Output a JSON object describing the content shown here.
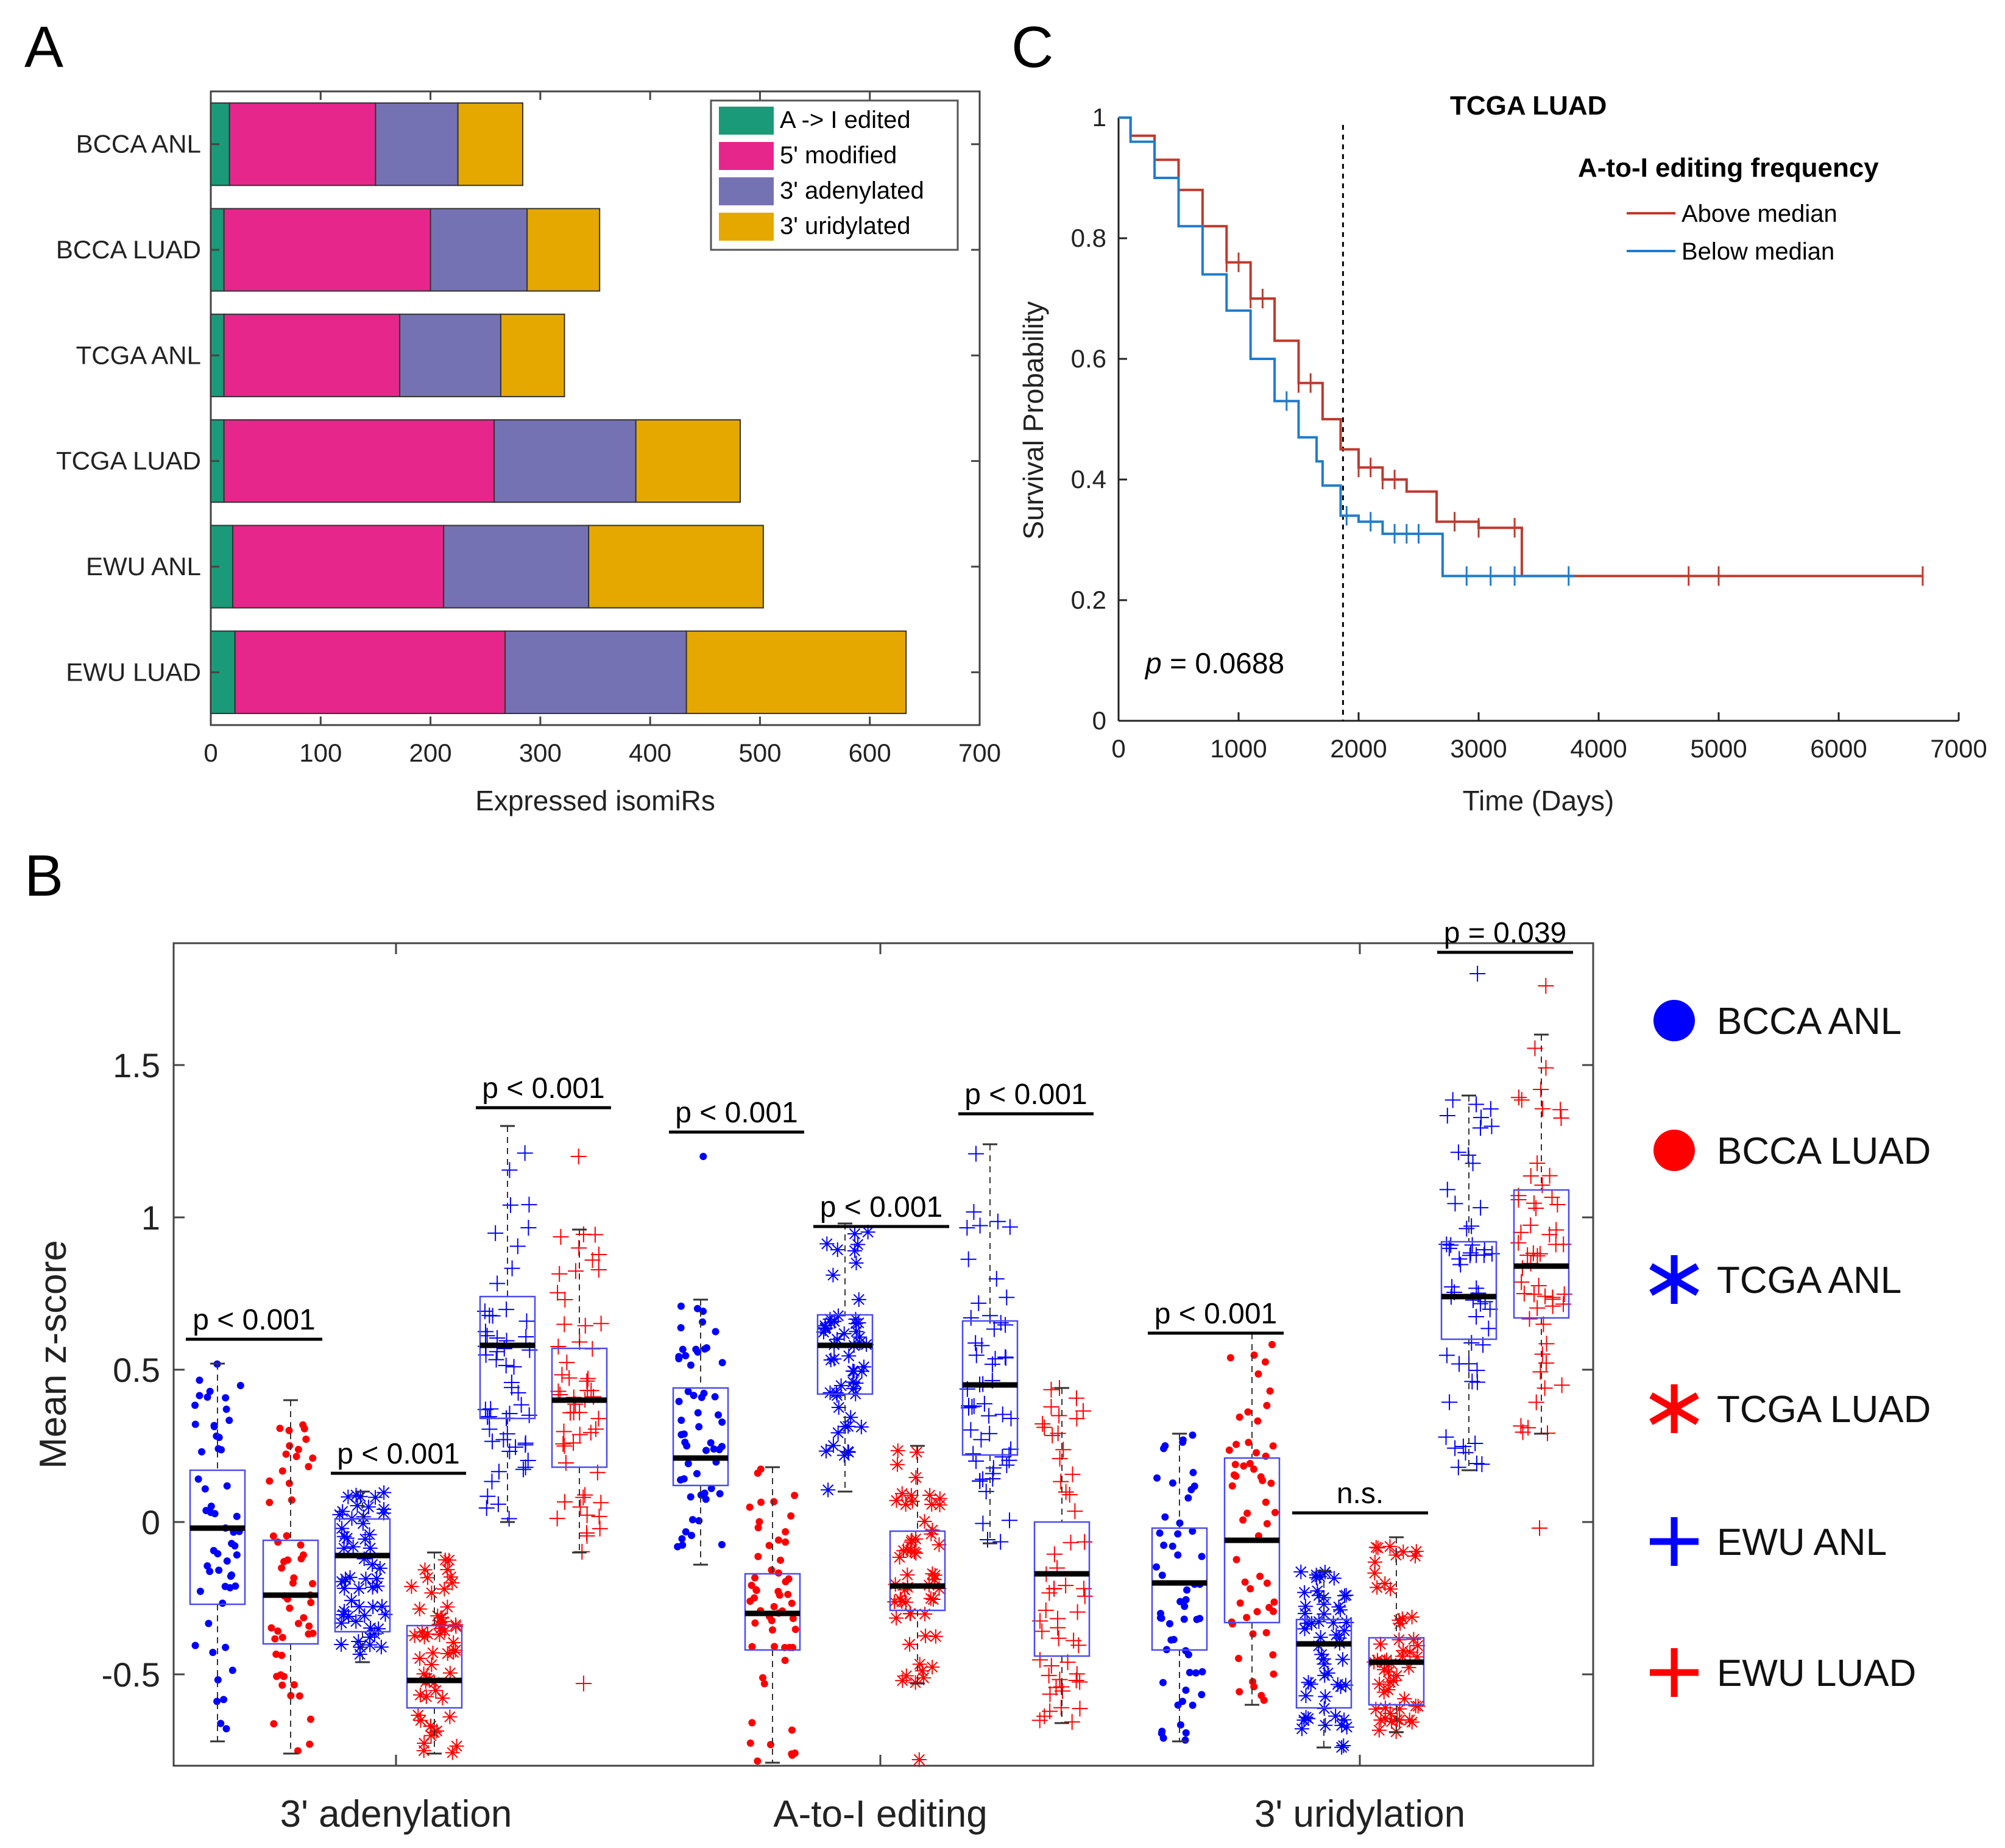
{
  "panels": {
    "a": "A",
    "b": "B",
    "c": "C"
  },
  "colors": {
    "edited": "#1a9a78",
    "five_prime": "#e6268a",
    "adenylated": "#7572b4",
    "uridylated": "#e4a800",
    "above": "#c0392b",
    "below": "#1f7ccc",
    "anl_blue": "#0000ff",
    "luad_red": "#ff0000"
  },
  "chart_data": [
    {
      "id": "A",
      "type": "bar",
      "orientation": "horizontal",
      "stacked": true,
      "categories": [
        "BCCA ANL",
        "BCCA LUAD",
        "TCGA ANL",
        "TCGA LUAD",
        "EWU ANL",
        "EWU LUAD"
      ],
      "series": [
        {
          "name": "A -> I edited",
          "values": [
            17,
            12,
            12,
            12,
            20,
            22
          ]
        },
        {
          "name": "5' modified",
          "values": [
            133,
            188,
            160,
            246,
            192,
            246
          ]
        },
        {
          "name": "3' adenylated",
          "values": [
            75,
            88,
            92,
            129,
            132,
            165
          ]
        },
        {
          "name": "3' uridylated",
          "values": [
            59,
            66,
            58,
            95,
            159,
            200
          ]
        }
      ],
      "xlabel": "Expressed isomiRs",
      "xlim": [
        0,
        700
      ],
      "xticks": [
        0,
        100,
        200,
        300,
        400,
        500,
        600,
        700
      ],
      "legend_position": "top-right"
    },
    {
      "id": "C",
      "type": "line",
      "title": "TCGA LUAD",
      "legend_title": "A-to-I editing frequency",
      "xlabel": "Time (Days)",
      "ylabel": "Survival Probability",
      "xlim": [
        0,
        7000
      ],
      "ylim": [
        0,
        1
      ],
      "xticks": [
        0,
        1000,
        2000,
        3000,
        4000,
        5000,
        6000,
        7000
      ],
      "yticks": [
        0,
        0.2,
        0.4,
        0.6,
        0.8,
        1
      ],
      "ytick_labels": [
        "0",
        "0.2",
        "0.4",
        "0.6",
        "0.8",
        "1"
      ],
      "annotation": {
        "p_label": "p",
        "p_text": " = 0.0688"
      },
      "vline_x": 1870,
      "series": [
        {
          "name": "Above median",
          "x": [
            0,
            100,
            300,
            500,
            700,
            900,
            1100,
            1300,
            1500,
            1700,
            1850,
            2000,
            2200,
            2400,
            2600,
            2650,
            3000,
            3350,
            3360,
            4000,
            6700
          ],
          "y": [
            1.0,
            0.97,
            0.93,
            0.88,
            0.82,
            0.76,
            0.7,
            0.63,
            0.56,
            0.5,
            0.45,
            0.42,
            0.4,
            0.38,
            0.38,
            0.33,
            0.32,
            0.32,
            0.24,
            0.24,
            0.24
          ],
          "censor_x": [
            900,
            1000,
            1100,
            1200,
            1500,
            1600,
            2000,
            2100,
            2200,
            2300,
            2800,
            3000,
            3300,
            4750,
            5000,
            6700
          ]
        },
        {
          "name": "Below median",
          "x": [
            0,
            100,
            300,
            500,
            700,
            900,
            1100,
            1300,
            1500,
            1650,
            1700,
            1850,
            2000,
            2200,
            2500,
            2650,
            2700,
            3000,
            3800
          ],
          "y": [
            1.0,
            0.96,
            0.9,
            0.82,
            0.74,
            0.68,
            0.6,
            0.53,
            0.47,
            0.43,
            0.39,
            0.34,
            0.33,
            0.31,
            0.31,
            0.31,
            0.24,
            0.24,
            0.24
          ],
          "censor_x": [
            1400,
            1900,
            2100,
            2300,
            2400,
            2500,
            2900,
            3100,
            3300,
            3750
          ]
        }
      ]
    },
    {
      "id": "B",
      "type": "box",
      "ylabel": "Mean z-score",
      "ylim": [
        -0.8,
        1.9
      ],
      "yticks": [
        -0.5,
        0,
        0.5,
        1,
        1.5
      ],
      "ytick_labels": [
        "-0.5",
        "0",
        "0.5",
        "1",
        "1.5"
      ],
      "groups": [
        "3' adenylation",
        "A-to-I editing",
        "3' uridylation"
      ],
      "legend_position": "right",
      "series_names": [
        "BCCA ANL",
        "BCCA LUAD",
        "TCGA ANL",
        "TCGA LUAD",
        "EWU ANL",
        "EWU LUAD"
      ],
      "boxes": [
        {
          "group": 0,
          "series": "BCCA ANL",
          "median": -0.02,
          "q1": -0.27,
          "q3": 0.17,
          "wlo": -0.72,
          "whi": 0.52,
          "marker": "dot",
          "color": "blue"
        },
        {
          "group": 0,
          "series": "BCCA LUAD",
          "median": -0.24,
          "q1": -0.4,
          "q3": -0.06,
          "wlo": -0.76,
          "whi": 0.4,
          "marker": "dot",
          "color": "red"
        },
        {
          "group": 0,
          "series": "TCGA ANL",
          "median": -0.11,
          "q1": -0.36,
          "q3": 0.01,
          "wlo": -0.46,
          "whi": 0.1,
          "marker": "star",
          "color": "blue"
        },
        {
          "group": 0,
          "series": "TCGA LUAD",
          "median": -0.52,
          "q1": -0.61,
          "q3": -0.34,
          "wlo": -0.76,
          "whi": -0.1,
          "marker": "star",
          "color": "red"
        },
        {
          "group": 0,
          "series": "EWU ANL",
          "median": 0.58,
          "q1": 0.34,
          "q3": 0.74,
          "wlo": 0.0,
          "whi": 1.3,
          "marker": "plus",
          "color": "blue"
        },
        {
          "group": 0,
          "series": "EWU LUAD",
          "median": 0.4,
          "q1": 0.18,
          "q3": 0.57,
          "wlo": -0.1,
          "whi": 0.96,
          "marker": "plus",
          "color": "red"
        },
        {
          "group": 1,
          "series": "BCCA ANL",
          "median": 0.21,
          "q1": 0.12,
          "q3": 0.44,
          "wlo": -0.14,
          "whi": 0.73,
          "marker": "dot",
          "color": "blue"
        },
        {
          "group": 1,
          "series": "BCCA LUAD",
          "median": -0.3,
          "q1": -0.42,
          "q3": -0.17,
          "wlo": -0.79,
          "whi": 0.18,
          "marker": "dot",
          "color": "red"
        },
        {
          "group": 1,
          "series": "TCGA ANL",
          "median": 0.58,
          "q1": 0.42,
          "q3": 0.68,
          "wlo": 0.1,
          "whi": 0.98,
          "marker": "star",
          "color": "blue"
        },
        {
          "group": 1,
          "series": "TCGA LUAD",
          "median": -0.21,
          "q1": -0.29,
          "q3": -0.03,
          "wlo": -0.53,
          "whi": 0.25,
          "marker": "star",
          "color": "red"
        },
        {
          "group": 1,
          "series": "EWU ANL",
          "median": 0.45,
          "q1": 0.22,
          "q3": 0.66,
          "wlo": -0.07,
          "whi": 1.24,
          "marker": "plus",
          "color": "blue"
        },
        {
          "group": 1,
          "series": "EWU LUAD",
          "median": -0.17,
          "q1": -0.44,
          "q3": 0.0,
          "wlo": -0.66,
          "whi": 0.44,
          "marker": "plus",
          "color": "red"
        },
        {
          "group": 2,
          "series": "BCCA ANL",
          "median": -0.2,
          "q1": -0.42,
          "q3": -0.02,
          "wlo": -0.72,
          "whi": 0.29,
          "marker": "dot",
          "color": "blue"
        },
        {
          "group": 2,
          "series": "BCCA LUAD",
          "median": -0.06,
          "q1": -0.33,
          "q3": 0.21,
          "wlo": -0.6,
          "whi": 0.62,
          "marker": "dot",
          "color": "red"
        },
        {
          "group": 2,
          "series": "TCGA ANL",
          "median": -0.4,
          "q1": -0.61,
          "q3": -0.32,
          "wlo": -0.74,
          "whi": -0.16,
          "marker": "star",
          "color": "blue"
        },
        {
          "group": 2,
          "series": "TCGA LUAD",
          "median": -0.46,
          "q1": -0.6,
          "q3": -0.38,
          "wlo": -0.69,
          "whi": -0.05,
          "marker": "star",
          "color": "red"
        },
        {
          "group": 2,
          "series": "EWU ANL",
          "median": 0.74,
          "q1": 0.6,
          "q3": 0.92,
          "wlo": 0.17,
          "whi": 1.4,
          "marker": "plus",
          "color": "blue"
        },
        {
          "group": 2,
          "series": "EWU LUAD",
          "median": 0.84,
          "q1": 0.67,
          "q3": 1.09,
          "wlo": 0.29,
          "whi": 1.6,
          "marker": "plus",
          "color": "red"
        }
      ],
      "outliers": [
        {
          "box": 6,
          "y": 1.2
        },
        {
          "box": 11,
          "y": 0.44
        },
        {
          "box": 5,
          "y": 1.2
        },
        {
          "box": 5,
          "y": -0.53
        },
        {
          "box": 9,
          "y": -0.78
        },
        {
          "box": 16,
          "y": 1.8
        },
        {
          "box": 17,
          "y": 1.76
        },
        {
          "box": 17,
          "y": -0.02
        }
      ],
      "brackets": [
        {
          "from": 0,
          "to": 1,
          "y": 0.6,
          "label": "p < 0.001"
        },
        {
          "from": 2,
          "to": 3,
          "y": 0.16,
          "label": "p < 0.001"
        },
        {
          "from": 4,
          "to": 5,
          "y": 1.36,
          "label": "p < 0.001"
        },
        {
          "from": 6,
          "to": 7,
          "y": 1.28,
          "label": "p < 0.001"
        },
        {
          "from": 8,
          "to": 9,
          "y": 0.97,
          "label": "p < 0.001"
        },
        {
          "from": 10,
          "to": 11,
          "y": 1.34,
          "label": "p < 0.001"
        },
        {
          "from": 12,
          "to": 13,
          "y": 0.62,
          "label": "p < 0.001"
        },
        {
          "from": 14,
          "to": 15,
          "y": 0.03,
          "label": "n.s."
        },
        {
          "from": 16,
          "to": 17,
          "y": 1.87,
          "label": "p = 0.039"
        }
      ]
    }
  ]
}
